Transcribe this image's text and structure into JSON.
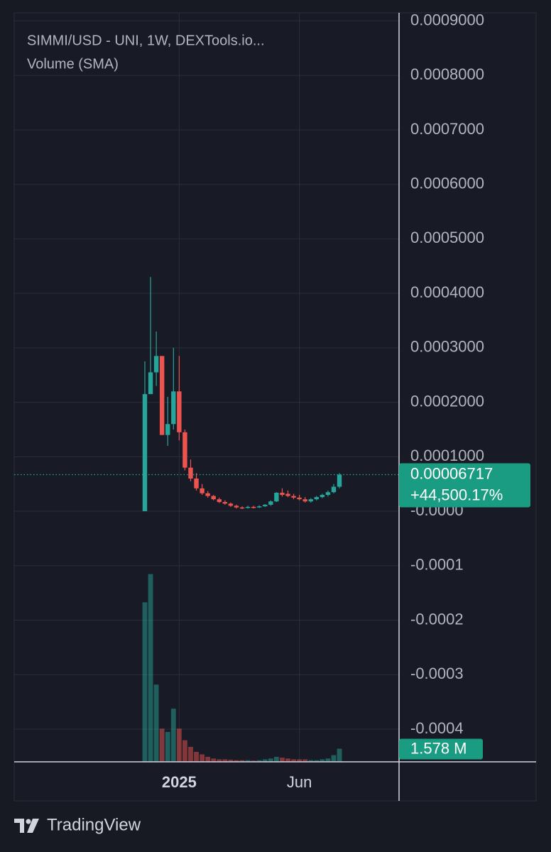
{
  "chart_data": {
    "type": "candlestick",
    "title": "SIMMI/USD - UNI, 1W, DEXTools.io...",
    "subtitle": "Volume (SMA)",
    "brand": "TradingView",
    "categories": [
      null,
      null,
      null,
      null,
      null,
      null,
      "2025",
      null,
      null,
      null,
      null,
      null,
      null,
      null,
      null,
      null,
      null,
      null,
      null,
      null,
      null,
      null,
      null,
      null,
      null,
      null,
      null,
      "Jun",
      null,
      null,
      null,
      null,
      null,
      null,
      null
    ],
    "open": [
      0.0,
      0.000215,
      0.000255,
      0.000285,
      0.00014,
      0.00016,
      0.00022,
      0.000145,
      8e-05,
      6e-05,
      4.2e-05,
      3.3e-05,
      2.8e-05,
      2.2e-05,
      1.7e-05,
      1.4e-05,
      1e-05,
      7e-06,
      6e-06,
      8e-06,
      7e-06,
      9e-06,
      1.2e-05,
      1.8e-05,
      3.4e-05,
      3.2e-05,
      2.8e-05,
      2.5e-05,
      2.2e-05,
      1.8e-05,
      2.2e-05,
      2.6e-05,
      3e-05,
      3.5e-05,
      4.5e-05
    ],
    "high": [
      0.000275,
      0.00043,
      0.00033,
      0.000285,
      0.00021,
      0.0003,
      0.000285,
      0.00015,
      9.5e-05,
      7e-05,
      5e-05,
      3.7e-05,
      3e-05,
      2.5e-05,
      2e-05,
      1.6e-05,
      1.2e-05,
      9e-06,
      1e-05,
      1e-05,
      1.1e-05,
      1.3e-05,
      2e-05,
      3.5e-05,
      4.2e-05,
      3.8e-05,
      3.2e-05,
      3e-05,
      2.6e-05,
      2.4e-05,
      2.8e-05,
      3.2e-05,
      3.8e-05,
      5e-05,
      7e-05
    ],
    "low": [
      0.0,
      0.00022,
      0.00023,
      0.00014,
      0.00012,
      0.00015,
      0.00013,
      7.5e-05,
      5.5e-05,
      3.8e-05,
      3e-05,
      2.5e-05,
      2e-05,
      1.5e-05,
      1.2e-05,
      8e-06,
      5e-06,
      4e-06,
      5e-06,
      5e-06,
      6e-06,
      8e-06,
      1e-05,
      1.7e-05,
      2.7e-05,
      2.6e-05,
      2.2e-05,
      2e-05,
      1.6e-05,
      1.6e-05,
      2e-05,
      2.4e-05,
      2.7e-05,
      3.3e-05,
      4.2e-05
    ],
    "close": [
      0.000215,
      0.000255,
      0.000285,
      0.00014,
      0.00016,
      0.00022,
      0.000145,
      8e-05,
      6e-05,
      4.2e-05,
      3.3e-05,
      2.8e-05,
      2.2e-05,
      1.7e-05,
      1.4e-05,
      1e-05,
      7e-06,
      6e-06,
      8e-06,
      7e-06,
      9e-06,
      1.2e-05,
      1.8e-05,
      3.4e-05,
      3e-05,
      2.8e-05,
      2.5e-05,
      2.2e-05,
      1.8e-05,
      2.2e-05,
      2.6e-05,
      3e-05,
      3.5e-05,
      4.5e-05,
      6.717e-05
    ],
    "up_color": "#26a69a",
    "down_color": "#ef5350",
    "ylim": [
      -0.00046,
      0.000915
    ],
    "yticks": [
      {
        "value": 0.0009,
        "label": "0.0009000"
      },
      {
        "value": 0.0008,
        "label": "0.0008000"
      },
      {
        "value": 0.0007,
        "label": "0.0007000"
      },
      {
        "value": 0.0006,
        "label": "0.0006000"
      },
      {
        "value": 0.0005,
        "label": "0.0005000"
      },
      {
        "value": 0.0004,
        "label": "0.0004000"
      },
      {
        "value": 0.0003,
        "label": "0.0003000"
      },
      {
        "value": 0.0002,
        "label": "0.0002000"
      },
      {
        "value": 0.0001,
        "label": "0.0001000"
      },
      {
        "value": 0,
        "label": "-0.0000"
      },
      {
        "value": -0.0001,
        "label": "-0.0001"
      },
      {
        "value": -0.0002,
        "label": "-0.0002"
      },
      {
        "value": -0.0003,
        "label": "-0.0003"
      },
      {
        "value": -0.0004,
        "label": "-0.0004"
      }
    ],
    "last_price_label": "0.00006717",
    "change_label": "+44,500.17%",
    "volume": {
      "values": [
        19.2,
        22.6,
        9.3,
        4.0,
        3.6,
        6.4,
        4.0,
        2.6,
        1.8,
        1.2,
        0.9,
        0.6,
        0.4,
        0.3,
        0.3,
        0.25,
        0.2,
        0.2,
        0.2,
        0.15,
        0.2,
        0.3,
        0.4,
        0.6,
        0.5,
        0.4,
        0.3,
        0.3,
        0.3,
        0.2,
        0.2,
        0.3,
        0.4,
        0.8,
        1.578
      ],
      "axis": "y2",
      "last_label": "1.578 M"
    },
    "y2lim": [
      0,
      25
    ],
    "grid": true
  }
}
